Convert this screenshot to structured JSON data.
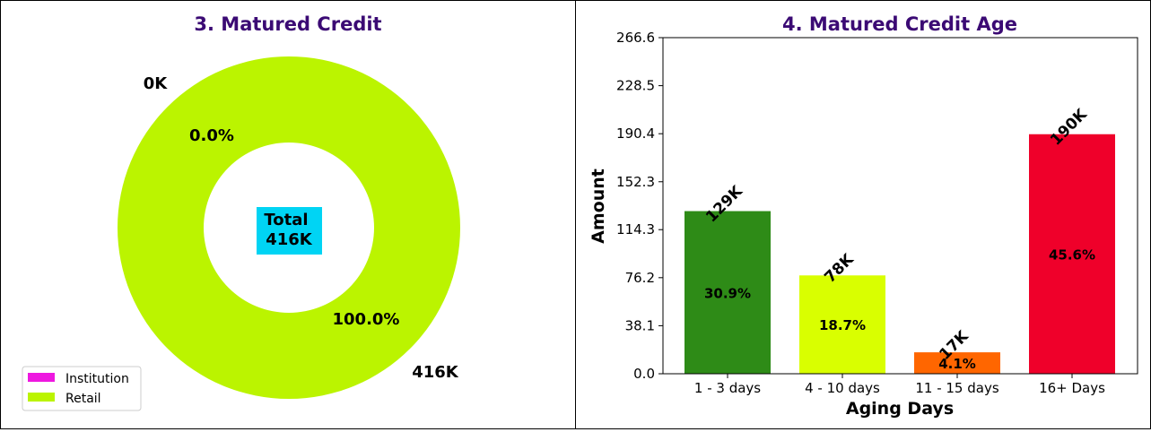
{
  "chart_data": [
    {
      "type": "pie",
      "title": "3. Matured Credit",
      "center_label": {
        "line1": "Total",
        "line2": "416K"
      },
      "slices": [
        {
          "name": "Institution",
          "value": 0,
          "value_label": "0K",
          "pct_label": "0.0%",
          "color": "#ee18e0"
        },
        {
          "name": "Retail",
          "value": 416,
          "value_label": "416K",
          "pct_label": "100.0%",
          "color": "#bbf400"
        }
      ],
      "legend": {
        "placement": "lower-left",
        "entries": [
          "Institution",
          "Retail"
        ]
      },
      "center_box_color": "#00d4f4"
    },
    {
      "type": "bar",
      "title": "4. Matured Credit Age",
      "xlabel": "Aging Days",
      "ylabel": "Amount",
      "categories": [
        "1 - 3 days",
        "4 - 10 days",
        "11 - 15 days",
        "16+ Days"
      ],
      "values": [
        129,
        78,
        17,
        190
      ],
      "value_labels": [
        "129K",
        "78K",
        "17K",
        "190K"
      ],
      "pct_labels": [
        "30.9%",
        "18.7%",
        "4.1%",
        "45.6%"
      ],
      "colors": [
        "#2e8b17",
        "#d9ff00",
        "#ff6600",
        "#ef002a"
      ],
      "ylim": [
        0,
        266.6
      ],
      "yticks": [
        "0.0",
        "38.1",
        "76.2",
        "114.3",
        "152.3",
        "190.4",
        "228.5",
        "266.6"
      ],
      "grid": false
    }
  ],
  "colors": {
    "title": "#3b0a74"
  }
}
